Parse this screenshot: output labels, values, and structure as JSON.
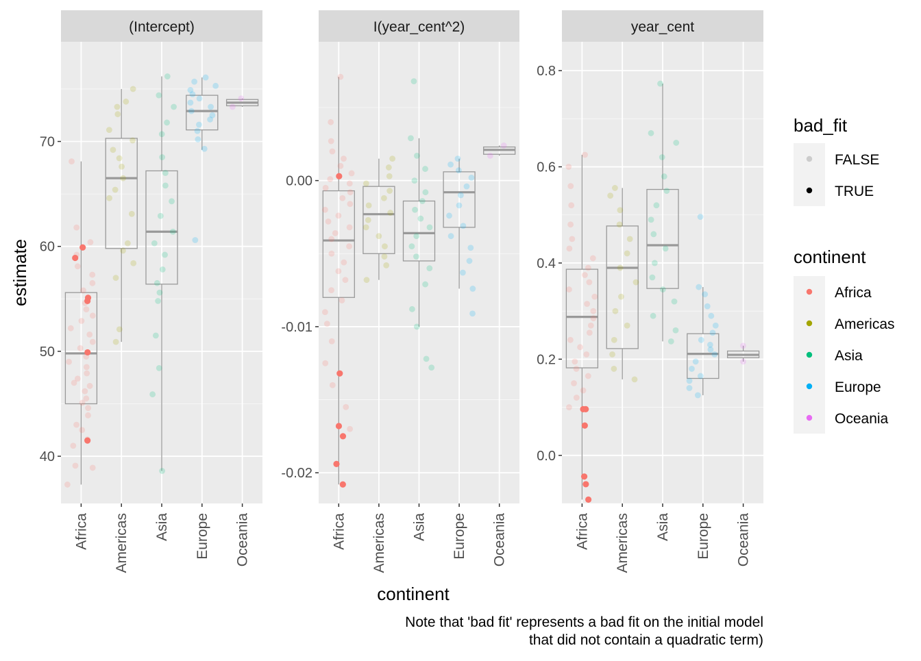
{
  "chart_data": {
    "type": "boxplot",
    "x_label": "continent",
    "y_label": "estimate",
    "categories": [
      "Africa",
      "Americas",
      "Asia",
      "Europe",
      "Oceania"
    ],
    "caption_lines": [
      "Note that 'bad fit' represents a bad fit on the initial model",
      "that did not contain a quadratic term)"
    ],
    "colors": {
      "Africa": "#F8766D",
      "Americas": "#A3A500",
      "Asia": "#00BF7D",
      "Europe": "#00B0F6",
      "Oceania": "#E76BF3",
      "panel_bg": "#EBEBEB",
      "strip_bg": "#D9D9D9",
      "grid": "#FFFFFF",
      "box": "#999999"
    },
    "legend": {
      "bad_fit": {
        "title": "bad_fit",
        "entries": [
          {
            "label": "FALSE",
            "color": "#CCCCCC"
          },
          {
            "label": "TRUE",
            "color": "#000000"
          }
        ]
      },
      "continent": {
        "title": "continent",
        "entries": [
          "Africa",
          "Americas",
          "Asia",
          "Europe",
          "Oceania"
        ]
      },
      "placement": "right"
    },
    "panels": [
      {
        "strip": "(Intercept)",
        "ylim": [
          35.5,
          79.5
        ],
        "y_ticks": [
          40,
          50,
          60,
          70
        ],
        "y_tick_labels": [
          "40",
          "50",
          "60",
          "70"
        ],
        "boxes": [
          {
            "category": "Africa",
            "q1": 45.0,
            "median": 49.8,
            "q3": 55.6,
            "lower": 37.3,
            "upper": 68.1
          },
          {
            "category": "Americas",
            "q1": 59.8,
            "median": 66.5,
            "q3": 70.3,
            "lower": 50.9,
            "upper": 75.0
          },
          {
            "category": "Asia",
            "q1": 56.4,
            "median": 61.4,
            "q3": 67.2,
            "lower": 38.6,
            "upper": 76.2
          },
          {
            "category": "Europe",
            "q1": 71.1,
            "median": 72.9,
            "q3": 74.4,
            "lower": 69.2,
            "upper": 76.1
          },
          {
            "category": "Oceania",
            "q1": 73.4,
            "median": 73.7,
            "q3": 74.0,
            "lower": 73.3,
            "upper": 74.1
          }
        ],
        "points": {
          "Africa": [
            37.3,
            38.9,
            39.1,
            41.0,
            41.6,
            42.5,
            43.0,
            43.9,
            44.6,
            45.1,
            45.5,
            46.2,
            46.7,
            47.0,
            47.4,
            47.9,
            48.5,
            49.0,
            49.5,
            50.3,
            50.9,
            51.6,
            52.2,
            52.9,
            53.4,
            54.0,
            54.6,
            55.8,
            56.5,
            57.3,
            58.1,
            59.2,
            60.4,
            61.8,
            68.1
          ],
          "Americas": [
            50.9,
            52.1,
            57.0,
            58.4,
            59.6,
            60.3,
            63.1,
            64.6,
            65.4,
            66.5,
            67.6,
            68.4,
            69.2,
            70.1,
            71.1,
            72.6,
            73.3,
            73.8,
            75.0
          ],
          "Asia": [
            38.6,
            45.9,
            48.4,
            51.5,
            54.8,
            55.6,
            56.5,
            57.8,
            59.2,
            60.3,
            61.4,
            62.9,
            64.3,
            65.8,
            67.0,
            68.5,
            70.7,
            71.8,
            73.3,
            74.4,
            76.2
          ],
          "Europe": [
            60.6,
            69.3,
            70.2,
            71.0,
            71.6,
            72.1,
            72.5,
            72.9,
            73.3,
            73.7,
            74.1,
            74.5,
            74.9,
            75.3,
            75.7,
            76.1
          ],
          "Oceania": [
            73.3,
            74.1
          ]
        },
        "bad_fit_points": {
          "Africa": [
            59.9,
            58.9,
            55.1,
            54.8,
            49.9,
            41.5
          ]
        }
      },
      {
        "strip": "I(year_cent^2)",
        "ylim": [
          -0.0221,
          0.0095
        ],
        "y_ticks": [
          -0.02,
          -0.01,
          0.0
        ],
        "y_tick_labels": [
          "-0.02",
          "-0.01",
          "0.00"
        ],
        "boxes": [
          {
            "category": "Africa",
            "q1": -0.008,
            "median": -0.0041,
            "q3": -0.0007,
            "lower": -0.0208,
            "upper": 0.0071
          },
          {
            "category": "Americas",
            "q1": -0.005,
            "median": -0.0023,
            "q3": -0.0004,
            "lower": -0.0068,
            "upper": 0.0015
          },
          {
            "category": "Asia",
            "q1": -0.0055,
            "median": -0.0036,
            "q3": -0.0014,
            "lower": -0.01,
            "upper": 0.0029
          },
          {
            "category": "Europe",
            "q1": -0.0032,
            "median": -0.0008,
            "q3": 0.0006,
            "lower": -0.0074,
            "upper": 0.0015
          },
          {
            "category": "Oceania",
            "q1": 0.0018,
            "median": 0.0021,
            "q3": 0.0023,
            "lower": 0.0017,
            "upper": 0.0024
          }
        ],
        "points": {
          "Africa": [
            -0.017,
            -0.0155,
            -0.014,
            -0.0125,
            -0.011,
            -0.0098,
            -0.009,
            -0.0082,
            -0.0075,
            -0.0068,
            -0.0062,
            -0.0056,
            -0.005,
            -0.0045,
            -0.004,
            -0.0036,
            -0.0032,
            -0.0028,
            -0.0024,
            -0.002,
            -0.0016,
            -0.0012,
            -0.0008,
            -0.0005,
            -0.0002,
            0.0001,
            0.0005,
            0.001,
            0.0015,
            0.002,
            0.0027,
            0.004,
            0.0071
          ],
          "Americas": [
            -0.0068,
            -0.0058,
            -0.0052,
            -0.0045,
            -0.0038,
            -0.0032,
            -0.0027,
            -0.0022,
            -0.0017,
            -0.0012,
            -0.0007,
            -0.0002,
            0.0003,
            0.0009,
            0.0015
          ],
          "Asia": [
            -0.0128,
            -0.0122,
            -0.01,
            -0.0088,
            -0.0071,
            -0.006,
            -0.0052,
            -0.0045,
            -0.0038,
            -0.0032,
            -0.0026,
            -0.002,
            -0.0014,
            -0.0008,
            0.0,
            0.0008,
            0.0017,
            0.0029,
            0.0068
          ],
          "Europe": [
            -0.0091,
            -0.0074,
            -0.0063,
            -0.0055,
            -0.0046,
            -0.0038,
            -0.0031,
            -0.0024,
            -0.0017,
            -0.001,
            -0.0004,
            0.0002,
            0.0007,
            0.0011,
            0.0015
          ],
          "Oceania": [
            0.0017,
            0.0024
          ]
        },
        "bad_fit_points": {
          "Africa": [
            0.0003,
            -0.0132,
            -0.0168,
            -0.0175,
            -0.0194,
            -0.0208
          ]
        }
      },
      {
        "strip": "year_cent",
        "ylim": [
          -0.1,
          0.86
        ],
        "y_ticks": [
          0.0,
          0.2,
          0.4,
          0.6,
          0.8
        ],
        "y_tick_labels": [
          "0.0",
          "0.2",
          "0.4",
          "0.6",
          "0.8"
        ],
        "boxes": [
          {
            "category": "Africa",
            "q1": 0.182,
            "median": 0.288,
            "q3": 0.387,
            "lower": -0.092,
            "upper": 0.625
          },
          {
            "category": "Americas",
            "q1": 0.222,
            "median": 0.39,
            "q3": 0.477,
            "lower": 0.158,
            "upper": 0.556
          },
          {
            "category": "Asia",
            "q1": 0.347,
            "median": 0.437,
            "q3": 0.553,
            "lower": 0.237,
            "upper": 0.773
          },
          {
            "category": "Europe",
            "q1": 0.16,
            "median": 0.211,
            "q3": 0.253,
            "lower": 0.125,
            "upper": 0.35
          },
          {
            "category": "Oceania",
            "q1": 0.203,
            "median": 0.209,
            "q3": 0.217,
            "lower": 0.195,
            "upper": 0.228
          }
        ],
        "points": {
          "Africa": [
            0.1,
            0.12,
            0.135,
            0.15,
            0.165,
            0.18,
            0.195,
            0.21,
            0.225,
            0.24,
            0.255,
            0.27,
            0.285,
            0.3,
            0.315,
            0.33,
            0.345,
            0.36,
            0.375,
            0.39,
            0.41,
            0.43,
            0.45,
            0.48,
            0.52,
            0.56,
            0.6,
            0.625
          ],
          "Americas": [
            0.158,
            0.18,
            0.21,
            0.24,
            0.27,
            0.3,
            0.33,
            0.36,
            0.39,
            0.42,
            0.45,
            0.48,
            0.51,
            0.54,
            0.556
          ],
          "Asia": [
            0.237,
            0.26,
            0.29,
            0.32,
            0.345,
            0.37,
            0.4,
            0.43,
            0.46,
            0.49,
            0.52,
            0.55,
            0.58,
            0.62,
            0.65,
            0.67,
            0.773
          ],
          "Europe": [
            0.125,
            0.14,
            0.155,
            0.165,
            0.18,
            0.195,
            0.21,
            0.22,
            0.23,
            0.24,
            0.255,
            0.27,
            0.29,
            0.31,
            0.335,
            0.35,
            0.496
          ],
          "Oceania": [
            0.195,
            0.228
          ]
        },
        "bad_fit_points": {
          "Africa": [
            0.096,
            0.096,
            0.062,
            -0.044,
            -0.06,
            -0.092
          ]
        }
      }
    ]
  }
}
